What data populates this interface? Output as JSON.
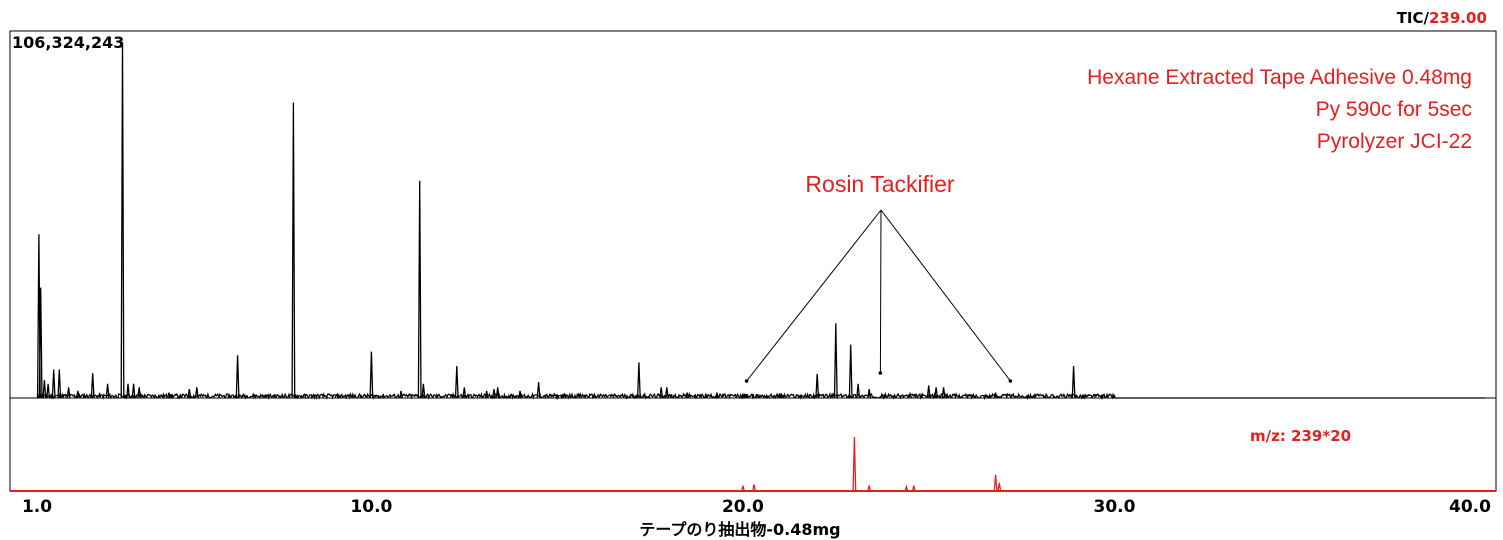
{
  "chart_data": {
    "type": "line",
    "header_top_right_prefix": "TIC/",
    "header_top_right_value": "239.00",
    "max_intensity_label": "106,324,243",
    "x_range": [
      1.0,
      40.0
    ],
    "tick_labels": [
      {
        "value": 1.0,
        "label": "1.0"
      },
      {
        "value": 10.0,
        "label": "10.0"
      },
      {
        "value": 20.0,
        "label": "20.0"
      },
      {
        "value": 30.0,
        "label": "30.0"
      },
      {
        "value": 40.0,
        "label": "40.0"
      }
    ],
    "xlabel": "テープのり抽出物-0.48mg",
    "annotation_lines": [
      "Hexane Extracted Tape Adhesive 0.48mg",
      "Py 590c for 5sec",
      "Pyrolyzer JCI-22"
    ],
    "callout_label": "Rosin Tackifier",
    "callout_targets": [
      20.1,
      23.7,
      27.2
    ],
    "series": [
      {
        "name": "TIC",
        "peaks": [
          [
            1.05,
            0.46
          ],
          [
            1.1,
            0.31
          ],
          [
            1.2,
            0.05
          ],
          [
            1.3,
            0.04
          ],
          [
            1.45,
            0.08
          ],
          [
            1.6,
            0.08
          ],
          [
            1.85,
            0.03
          ],
          [
            2.1,
            0.02
          ],
          [
            2.5,
            0.07
          ],
          [
            2.9,
            0.04
          ],
          [
            3.3,
            1.0
          ],
          [
            3.45,
            0.04
          ],
          [
            3.6,
            0.04
          ],
          [
            3.75,
            0.03
          ],
          [
            4.55,
            0.015
          ],
          [
            5.1,
            0.025
          ],
          [
            5.3,
            0.03
          ],
          [
            6.4,
            0.12
          ],
          [
            7.9,
            0.83
          ],
          [
            10.0,
            0.13
          ],
          [
            10.8,
            0.02
          ],
          [
            11.3,
            0.61
          ],
          [
            11.4,
            0.04
          ],
          [
            12.3,
            0.09
          ],
          [
            12.5,
            0.03
          ],
          [
            13.1,
            0.02
          ],
          [
            13.3,
            0.025
          ],
          [
            13.4,
            0.03
          ],
          [
            14.0,
            0.02
          ],
          [
            14.5,
            0.045
          ],
          [
            15.2,
            0.01
          ],
          [
            16.0,
            0.01
          ],
          [
            17.2,
            0.1
          ],
          [
            17.8,
            0.03
          ],
          [
            17.95,
            0.03
          ],
          [
            18.5,
            0.015
          ],
          [
            19.0,
            0.01
          ],
          [
            19.3,
            0.015
          ],
          [
            20.0,
            0.01
          ],
          [
            21.0,
            0.01
          ],
          [
            22.0,
            0.068
          ],
          [
            22.5,
            0.21
          ],
          [
            22.9,
            0.15
          ],
          [
            23.1,
            0.04
          ],
          [
            23.4,
            0.025
          ],
          [
            24.5,
            0.012
          ],
          [
            25.0,
            0.035
          ],
          [
            25.2,
            0.03
          ],
          [
            25.4,
            0.03
          ],
          [
            26.8,
            0.015
          ],
          [
            28.9,
            0.09
          ]
        ]
      },
      {
        "name": "m/z: 239*20",
        "peaks": [
          [
            20.0,
            0.1
          ],
          [
            20.3,
            0.12
          ],
          [
            23.0,
            1.0
          ],
          [
            23.4,
            0.1
          ],
          [
            24.4,
            0.08
          ],
          [
            24.6,
            0.1
          ],
          [
            26.8,
            0.3
          ],
          [
            26.9,
            0.15
          ]
        ]
      }
    ]
  },
  "colors": {
    "tic_trace": "#000000",
    "mz_trace": "#e41f1f",
    "annotation_text": "#e41f1f",
    "axis_line": "#e41f1f",
    "frame": "#000000"
  }
}
